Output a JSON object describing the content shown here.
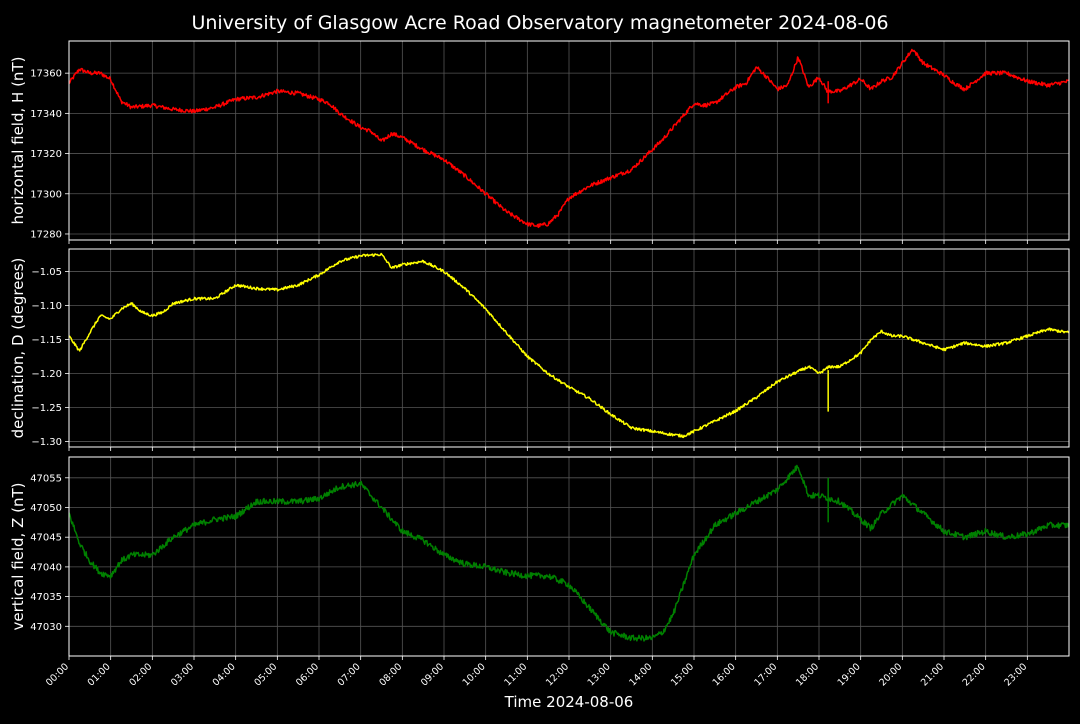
{
  "chart_data": {
    "type": "line",
    "title": "University of Glasgow Acre Road Observatory magnetometer 2024-08-06",
    "xlabel": "Time 2024-08-06",
    "x_unit": "hours",
    "xlim": [
      0,
      24
    ],
    "x_ticks": [
      0,
      1,
      2,
      3,
      4,
      5,
      6,
      7,
      8,
      9,
      10,
      11,
      12,
      13,
      14,
      15,
      16,
      17,
      18,
      19,
      20,
      21,
      22,
      23
    ],
    "x_tick_labels": [
      "00:00",
      "01:00",
      "02:00",
      "03:00",
      "04:00",
      "05:00",
      "06:00",
      "07:00",
      "08:00",
      "09:00",
      "10:00",
      "11:00",
      "12:00",
      "13:00",
      "14:00",
      "15:00",
      "16:00",
      "17:00",
      "18:00",
      "19:00",
      "20:00",
      "21:00",
      "22:00",
      "23:00"
    ],
    "background": "#000000",
    "grid": true,
    "panels": [
      {
        "ylabel": "horizontal field, H (nT)",
        "color": "#ff0000",
        "ylim": [
          17277,
          17376
        ],
        "y_ticks": [
          17280,
          17300,
          17320,
          17340,
          17360
        ],
        "y_tick_labels": [
          "17280",
          "17300",
          "17320",
          "17340",
          "17360"
        ],
        "noise": 1.0,
        "spike": {
          "x": 18.22,
          "from": 17356,
          "to": 17345
        },
        "x": [
          0,
          0.25,
          0.5,
          0.75,
          1,
          1.25,
          1.5,
          2,
          2.5,
          3,
          3.5,
          4,
          4.5,
          5,
          5.5,
          6,
          6.25,
          6.5,
          7,
          7.25,
          7.5,
          7.75,
          8,
          8.5,
          9,
          9.5,
          10,
          10.5,
          11,
          11.25,
          11.5,
          11.75,
          12,
          12.5,
          13,
          13.5,
          14,
          14.25,
          14.5,
          15,
          15.25,
          15.5,
          16,
          16.25,
          16.5,
          16.75,
          17,
          17.25,
          17.5,
          17.75,
          18,
          18.2,
          18.5,
          19,
          19.25,
          19.5,
          19.75,
          20,
          20.25,
          20.5,
          21,
          21.25,
          21.5,
          22,
          22.5,
          23,
          23.5,
          24
        ],
        "values": [
          17355,
          17362,
          17360,
          17360,
          17357,
          17346,
          17343,
          17344,
          17342,
          17341,
          17343,
          17347,
          17348,
          17351,
          17350,
          17347,
          17345,
          17340,
          17333,
          17331,
          17326,
          17330,
          17328,
          17322,
          17317,
          17309,
          17300,
          17291,
          17285,
          17284,
          17285,
          17290,
          17298,
          17304,
          17308,
          17312,
          17322,
          17327,
          17333,
          17345,
          17344,
          17345,
          17353,
          17355,
          17363,
          17358,
          17352,
          17354,
          17368,
          17353,
          17358,
          17351,
          17351,
          17357,
          17352,
          17356,
          17358,
          17365,
          17372,
          17365,
          17359,
          17355,
          17352,
          17360,
          17360,
          17356,
          17354,
          17356
        ]
      },
      {
        "ylabel": "declination, D (degrees)",
        "color": "#ffff00",
        "ylim": [
          -1.308,
          -1.017
        ],
        "y_ticks": [
          -1.3,
          -1.25,
          -1.2,
          -1.15,
          -1.1,
          -1.05
        ],
        "y_tick_labels": [
          "−1.30",
          "−1.25",
          "−1.20",
          "−1.15",
          "−1.10",
          "−1.05"
        ],
        "noise": 0.002,
        "spike": {
          "x": 18.22,
          "from": -1.195,
          "to": -1.256
        },
        "x": [
          0,
          0.25,
          0.5,
          0.75,
          1,
          1.25,
          1.5,
          1.75,
          2,
          2.25,
          2.5,
          3,
          3.5,
          4,
          4.5,
          5,
          5.5,
          6,
          6.5,
          7,
          7.5,
          7.75,
          8,
          8.5,
          9,
          9.5,
          10,
          10.5,
          11,
          11.5,
          12,
          12.5,
          13,
          13.5,
          14,
          14.5,
          14.75,
          15,
          15.5,
          16,
          16.5,
          17,
          17.5,
          17.75,
          18,
          18.25,
          18.5,
          19,
          19.25,
          19.5,
          19.75,
          20,
          20.5,
          21,
          21.5,
          22,
          22.5,
          23,
          23.5,
          24
        ],
        "values": [
          -1.145,
          -1.167,
          -1.14,
          -1.115,
          -1.12,
          -1.105,
          -1.097,
          -1.11,
          -1.115,
          -1.11,
          -1.097,
          -1.09,
          -1.09,
          -1.07,
          -1.075,
          -1.077,
          -1.07,
          -1.055,
          -1.035,
          -1.027,
          -1.025,
          -1.045,
          -1.04,
          -1.035,
          -1.05,
          -1.075,
          -1.105,
          -1.14,
          -1.175,
          -1.2,
          -1.22,
          -1.237,
          -1.26,
          -1.28,
          -1.285,
          -1.29,
          -1.292,
          -1.285,
          -1.27,
          -1.255,
          -1.235,
          -1.212,
          -1.197,
          -1.19,
          -1.2,
          -1.19,
          -1.19,
          -1.17,
          -1.15,
          -1.138,
          -1.145,
          -1.145,
          -1.155,
          -1.165,
          -1.155,
          -1.16,
          -1.155,
          -1.145,
          -1.135,
          -1.14
        ]
      },
      {
        "ylabel": "vertical field, Z (nT)",
        "color": "#008000",
        "ylim": [
          47025,
          47058.5
        ],
        "y_ticks": [
          47030,
          47035,
          47040,
          47045,
          47050,
          47055
        ],
        "y_tick_labels": [
          "47030",
          "47035",
          "47040",
          "47045",
          "47050",
          "47055"
        ],
        "noise": 0.5,
        "spike": {
          "x": 18.22,
          "from": 47055,
          "to": 47047.5
        },
        "x": [
          0,
          0.25,
          0.5,
          0.75,
          1,
          1.25,
          1.5,
          2,
          2.5,
          3,
          3.5,
          4,
          4.5,
          5,
          5.5,
          6,
          6.5,
          7,
          7.5,
          8,
          8.5,
          9,
          9.5,
          10,
          10.5,
          11,
          11.5,
          12,
          12.5,
          13,
          13.5,
          14,
          14.25,
          14.5,
          15,
          15.5,
          16,
          16.5,
          17,
          17.5,
          17.75,
          18,
          18.5,
          19,
          19.25,
          19.5,
          20,
          20.5,
          21,
          21.5,
          22,
          22.5,
          23,
          23.5,
          24
        ],
        "values": [
          47049,
          47044,
          47041,
          47039,
          47038.5,
          47041,
          47042,
          47042,
          47045,
          47047,
          47048,
          47048.5,
          47051,
          47051,
          47051,
          47051.5,
          47053.5,
          47054,
          47050,
          47046,
          47044.5,
          47042,
          47040.5,
          47040,
          47039,
          47038.5,
          47038.5,
          47037,
          47033,
          47029,
          47028,
          47028,
          47029,
          47032,
          47042,
          47047,
          47049,
          47051,
          47053,
          47057,
          47052,
          47052,
          47051,
          47048,
          47046.5,
          47049,
          47052,
          47049,
          47046,
          47045,
          47046,
          47045,
          47045.5,
          47047,
          47047
        ]
      }
    ]
  }
}
